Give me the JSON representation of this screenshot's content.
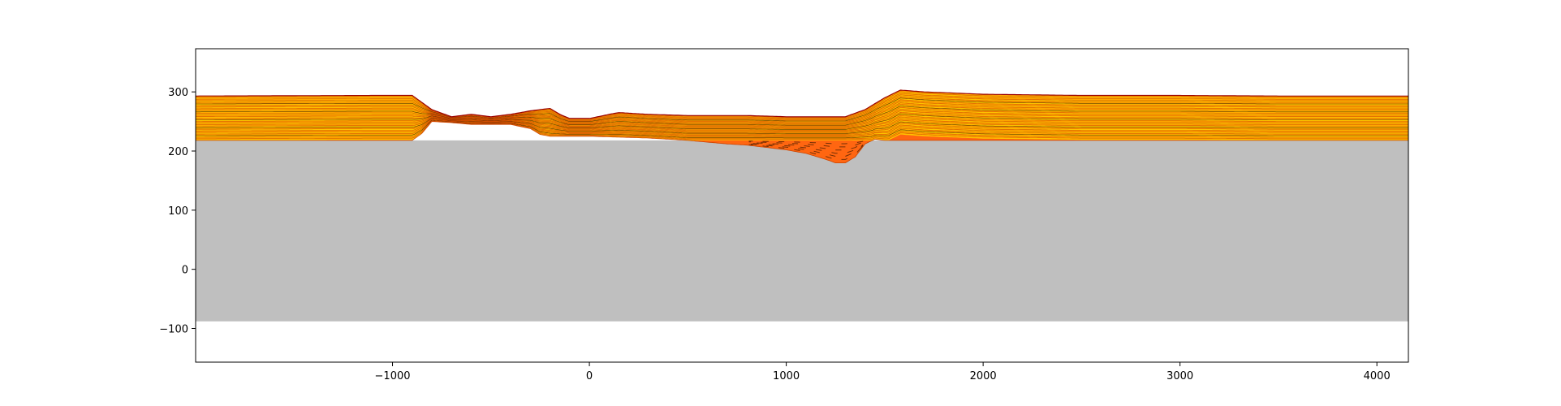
{
  "chart_data": {
    "type": "area",
    "title": "",
    "xlabel": "",
    "ylabel": "",
    "xlim": [
      -2000,
      4160
    ],
    "ylim": [
      -157,
      373
    ],
    "grid": false,
    "legend": "none",
    "x_ticks": [
      {
        "value": -1000,
        "label": "−1000"
      },
      {
        "value": 0,
        "label": "0"
      },
      {
        "value": 1000,
        "label": "1000"
      },
      {
        "value": 2000,
        "label": "2000"
      },
      {
        "value": 3000,
        "label": "3000"
      },
      {
        "value": 4000,
        "label": "4000"
      }
    ],
    "y_ticks": [
      {
        "value": -100,
        "label": "−100"
      },
      {
        "value": 0,
        "label": "0"
      },
      {
        "value": 100,
        "label": "100"
      },
      {
        "value": 200,
        "label": "200"
      },
      {
        "value": 300,
        "label": "300"
      }
    ],
    "colors": {
      "basement": "#bfbfbf",
      "layer_fill_a": "#ffaa00",
      "layer_fill_b": "#ffc300",
      "layer_line": "#cc4400",
      "layer_line_dark": "#3a1a00",
      "deep_fill": "#ff6611",
      "top_surface": "#990000",
      "axes": "#000000"
    },
    "series": [
      {
        "role": "basement",
        "x": [
          -2000,
          4160
        ],
        "y_top": [
          218,
          218
        ],
        "y_bottom": [
          -88,
          -88
        ]
      },
      {
        "role": "sediment_top",
        "x": [
          -2000,
          -1100,
          -900,
          -800,
          -700,
          -600,
          -500,
          -400,
          -300,
          -200,
          -150,
          -100,
          0,
          100,
          150,
          300,
          500,
          800,
          1000,
          1200,
          1300,
          1400,
          1500,
          1580,
          1700,
          2000,
          2500,
          3000,
          3500,
          4160
        ],
        "y": [
          293,
          294,
          294,
          270,
          258,
          262,
          258,
          262,
          268,
          272,
          262,
          255,
          255,
          262,
          265,
          262,
          260,
          260,
          258,
          258,
          258,
          270,
          290,
          303,
          300,
          296,
          294,
          294,
          293,
          293
        ]
      },
      {
        "role": "sediment_base",
        "x": [
          -2000,
          -900,
          -850,
          -800,
          -700,
          -600,
          -500,
          -400,
          -300,
          -250,
          -200,
          0,
          300,
          500,
          700,
          800,
          900,
          1000,
          1100,
          1200,
          1250,
          1300,
          1350,
          1400,
          1450,
          1500,
          2000,
          4160
        ],
        "y": [
          218,
          218,
          230,
          250,
          248,
          245,
          245,
          245,
          238,
          228,
          225,
          225,
          222,
          218,
          212,
          210,
          206,
          202,
          196,
          186,
          180,
          180,
          190,
          212,
          220,
          218,
          218,
          218
        ]
      }
    ]
  }
}
